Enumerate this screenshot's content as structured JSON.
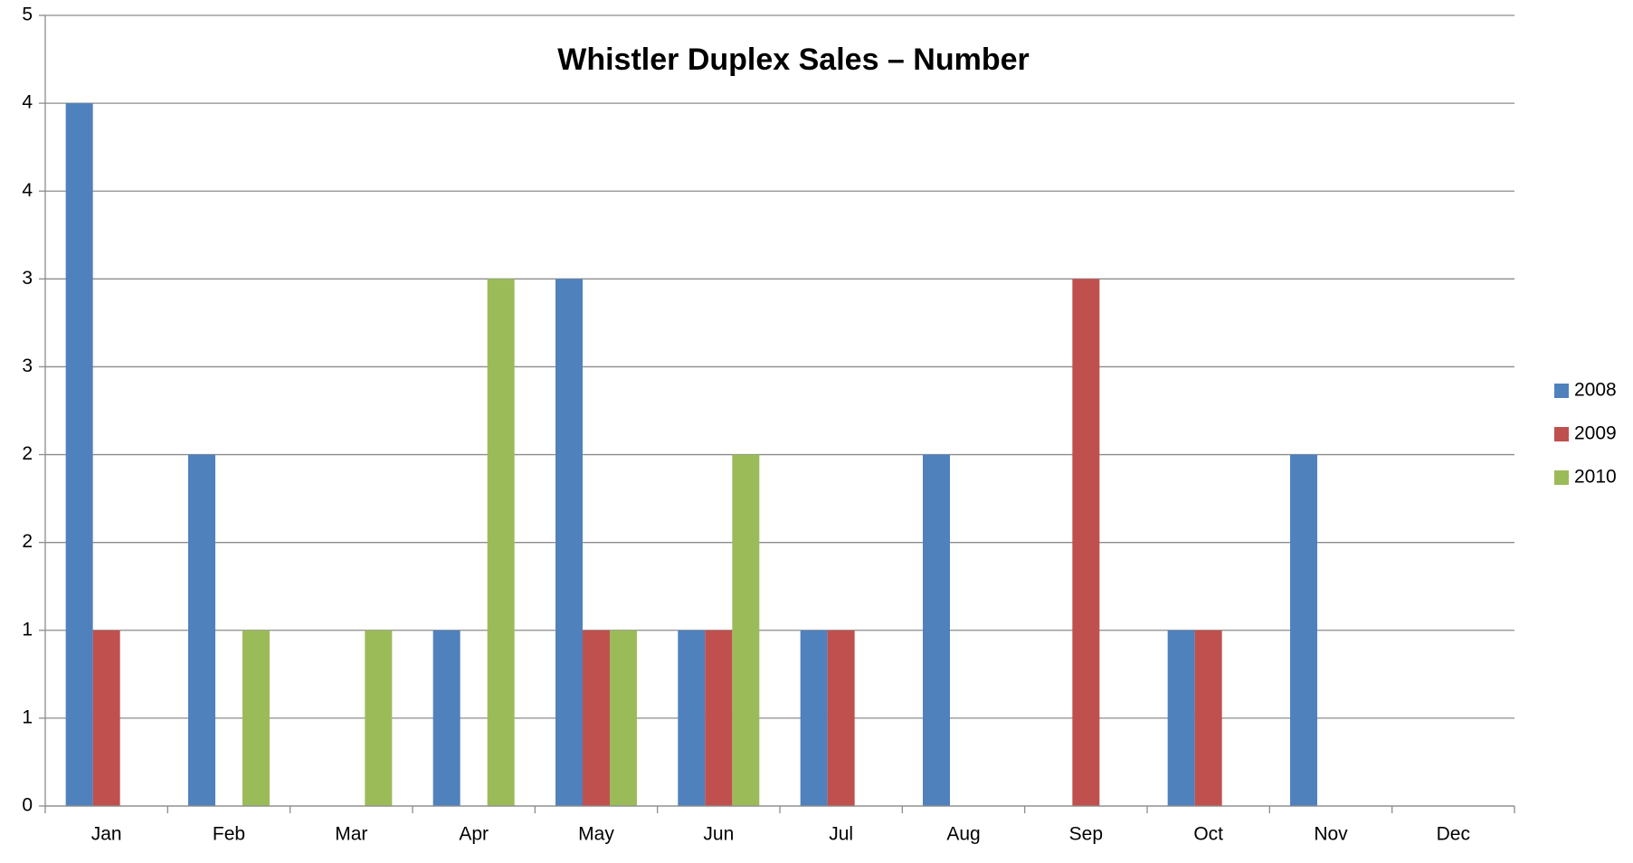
{
  "chart_data": {
    "type": "bar",
    "title": "Whistler Duplex Sales – Number",
    "categories": [
      "Jan",
      "Feb",
      "Mar",
      "Apr",
      "May",
      "Jun",
      "Jul",
      "Aug",
      "Sep",
      "Oct",
      "Nov",
      "Dec"
    ],
    "series": [
      {
        "name": "2008",
        "color": "#4f81bd",
        "values": [
          4,
          2,
          0,
          1,
          3,
          1,
          1,
          2,
          0,
          1,
          2,
          0
        ]
      },
      {
        "name": "2009",
        "color": "#c0504d",
        "values": [
          1,
          0,
          0,
          0,
          1,
          1,
          1,
          0,
          3,
          1,
          0,
          0
        ]
      },
      {
        "name": "2010",
        "color": "#9bbb59",
        "values": [
          0,
          1,
          1,
          3,
          1,
          2,
          0,
          0,
          0,
          0,
          0,
          0
        ]
      }
    ],
    "ylim": [
      0,
      4.5
    ],
    "yticks": [
      0,
      {
        "value": 0.5,
        "label": "1"
      },
      1,
      {
        "value": 1.5,
        "label": "2"
      },
      2,
      {
        "value": 2.5,
        "label": "3"
      },
      3,
      {
        "value": 3.5,
        "label": "4"
      },
      4,
      {
        "value": 4.5,
        "label": "5"
      }
    ],
    "grid": true,
    "legend": "right"
  }
}
